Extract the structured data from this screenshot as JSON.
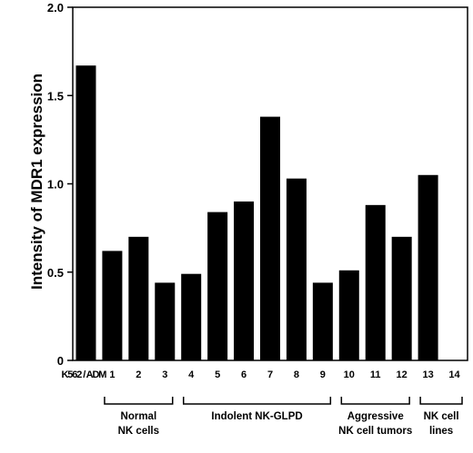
{
  "chart_data": {
    "type": "bar",
    "categories": [
      "K562 / ADM",
      "1",
      "2",
      "3",
      "4",
      "5",
      "6",
      "7",
      "8",
      "9",
      "10",
      "11",
      "12",
      "13",
      "14"
    ],
    "values": [
      1.67,
      0.62,
      0.7,
      0.44,
      0.49,
      0.84,
      0.9,
      1.38,
      1.03,
      0.44,
      0.51,
      0.88,
      0.7,
      1.05,
      0
    ],
    "title": "",
    "xlabel": "",
    "ylabel": "Intensity of MDR1 expression",
    "ylim": [
      0,
      2.0
    ],
    "yticks": [
      "0",
      "0.5",
      "1.0",
      "1.5",
      "2.0"
    ],
    "bar_color": "#000000",
    "groups": [
      {
        "label_lines": [
          "Normal",
          "NK cells"
        ],
        "from": "1",
        "to": "3"
      },
      {
        "label_lines": [
          "Indolent NK-GLPD"
        ],
        "from": "4",
        "to": "9"
      },
      {
        "label_lines": [
          "Aggressive",
          "NK cell tumors"
        ],
        "from": "10",
        "to": "12"
      },
      {
        "label_lines": [
          "NK cell",
          "lines"
        ],
        "from": "13",
        "to": "14"
      }
    ]
  }
}
